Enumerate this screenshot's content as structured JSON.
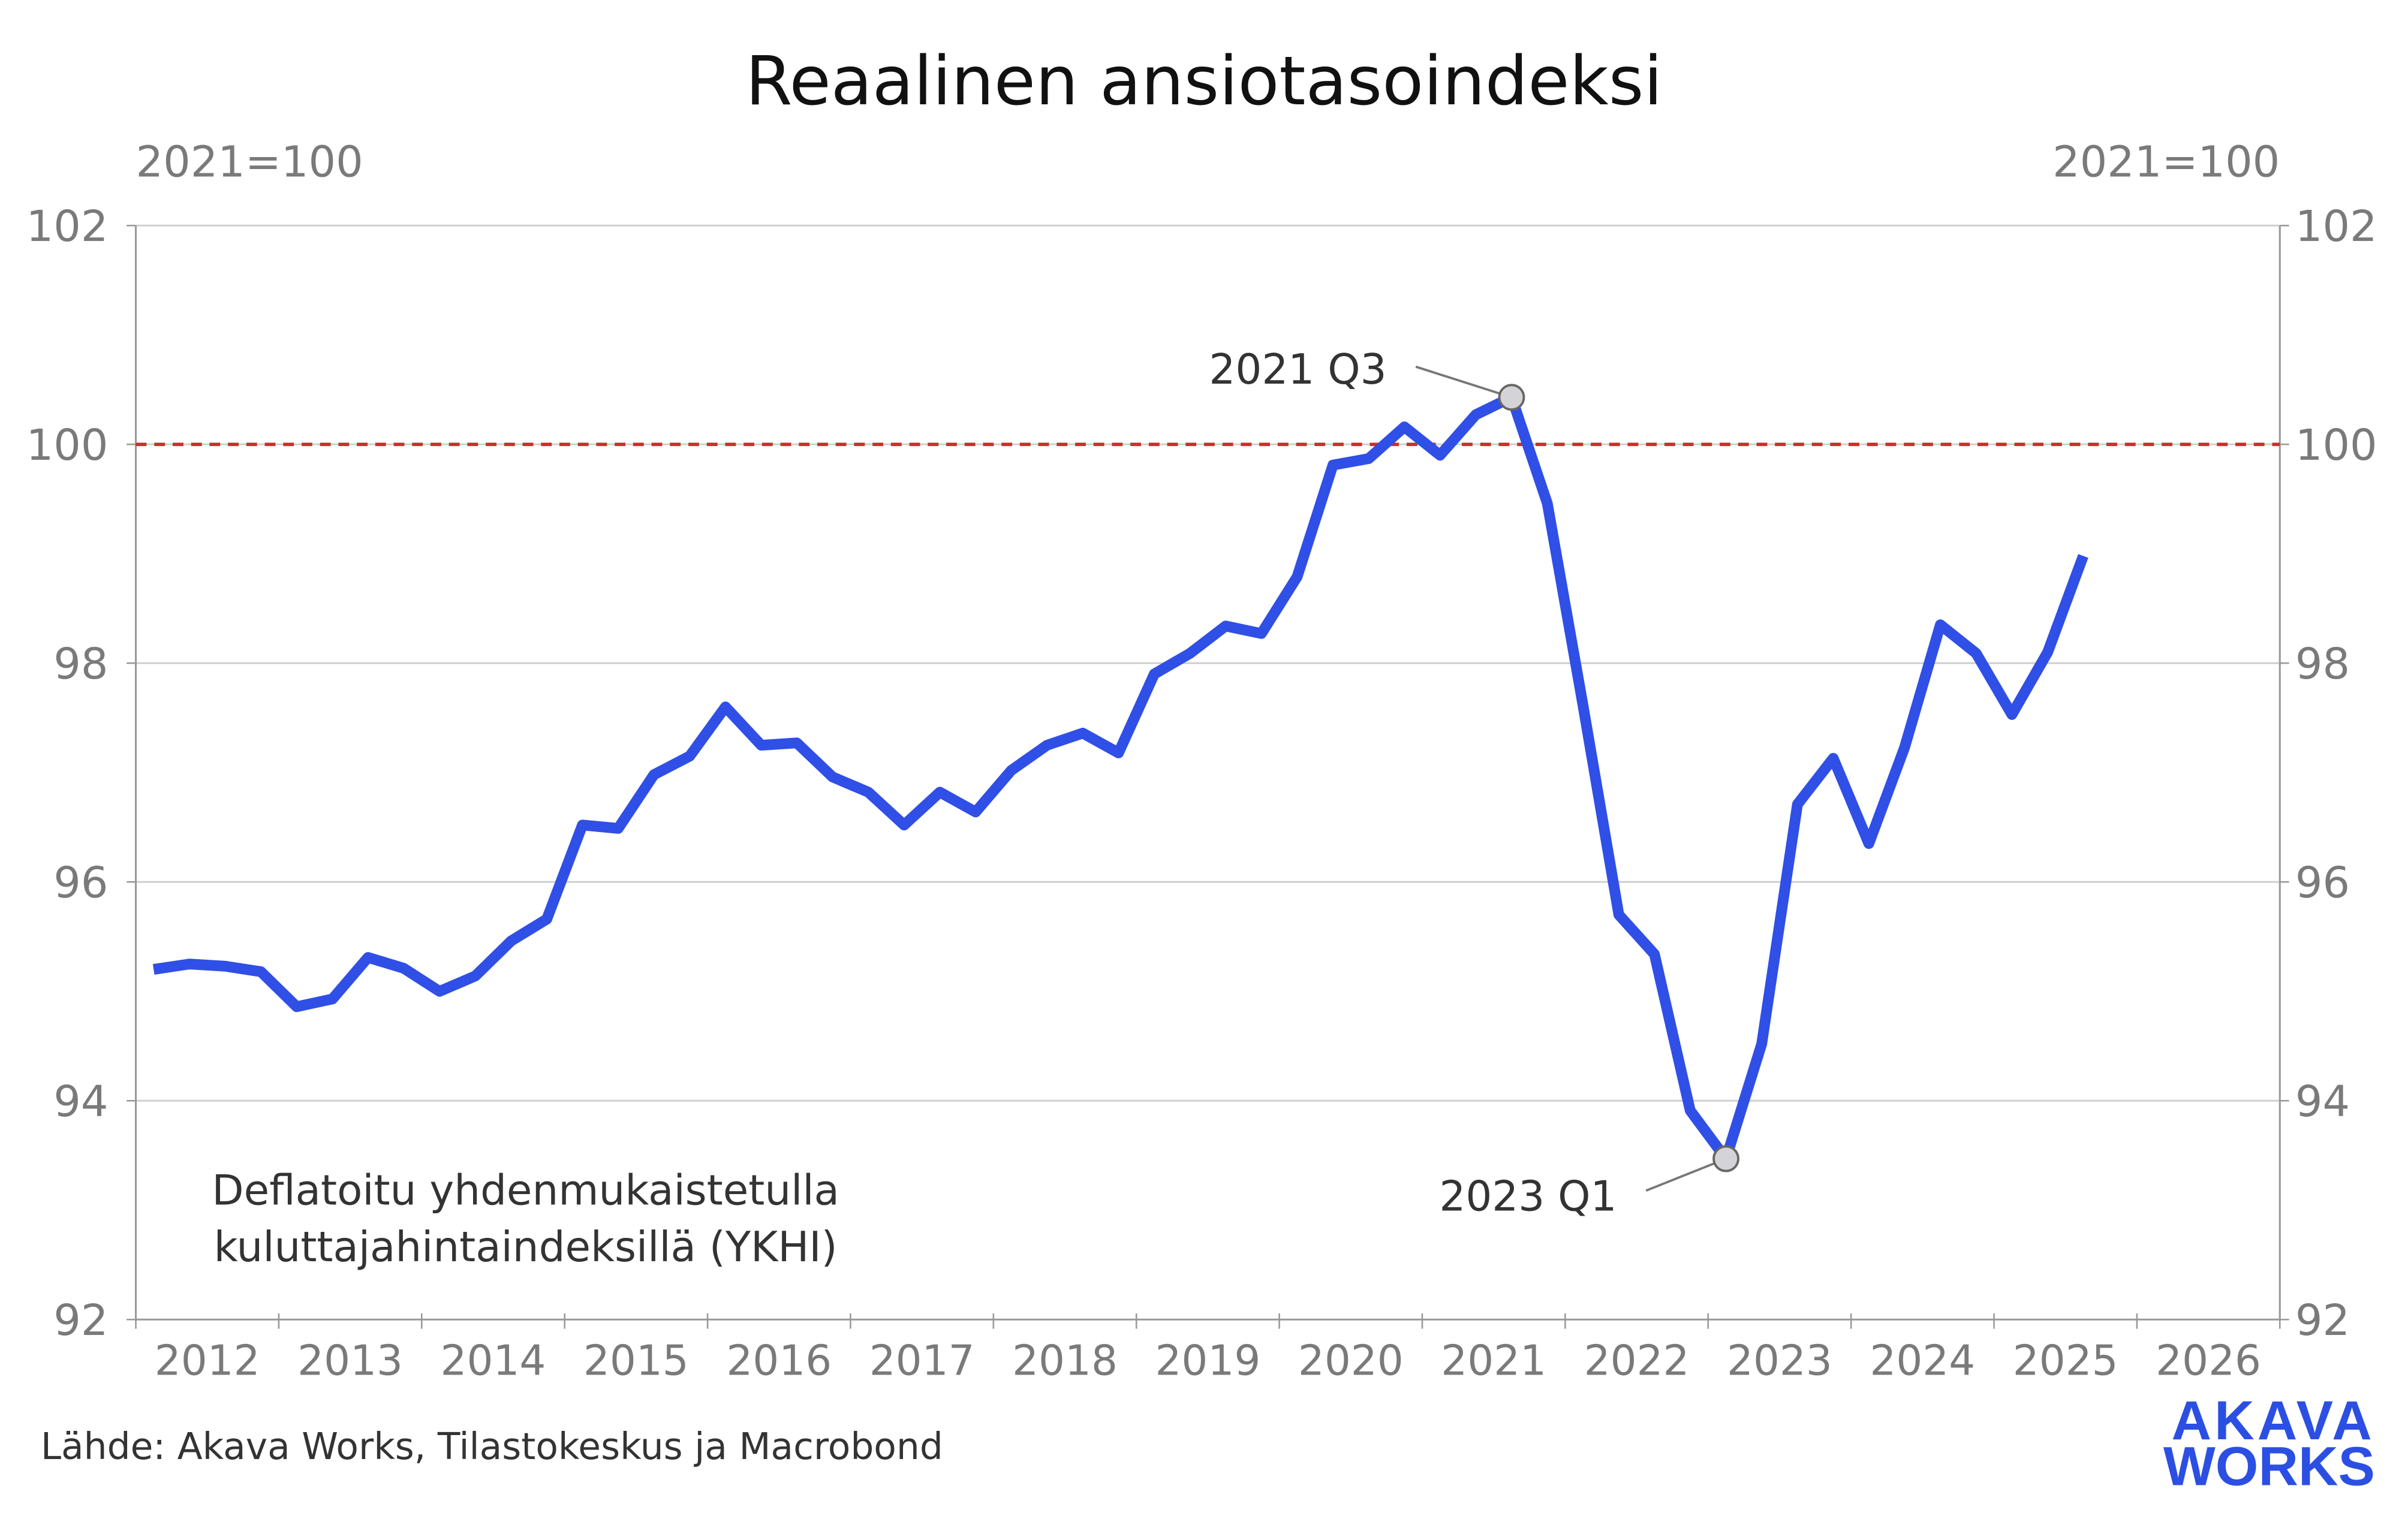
{
  "chart_data": {
    "type": "line",
    "title": "Reaalinen ansiotasoindeksi",
    "ylabel_left": "2021=100",
    "ylabel_right": "2021=100",
    "ylim": [
      92,
      102
    ],
    "yticks": [
      92,
      94,
      96,
      98,
      100,
      102
    ],
    "xlim": [
      2012,
      2027
    ],
    "xticks": [
      "2012",
      "2013",
      "2014",
      "2015",
      "2016",
      "2017",
      "2018",
      "2019",
      "2020",
      "2021",
      "2022",
      "2023",
      "2024",
      "2025",
      "2026"
    ],
    "grid": true,
    "reference_line": {
      "value": 100,
      "color": "#c8302a",
      "style": "dashed"
    },
    "series": [
      {
        "color": "#2f4fe6",
        "start": "2012 Q1",
        "frequency": "quarterly",
        "values": [
          95.2,
          95.25,
          95.23,
          95.18,
          94.86,
          94.93,
          95.31,
          95.21,
          95.0,
          95.14,
          95.46,
          95.66,
          96.52,
          96.49,
          96.98,
          97.15,
          97.6,
          97.25,
          97.27,
          96.96,
          96.82,
          96.52,
          96.82,
          96.64,
          97.02,
          97.25,
          97.36,
          97.18,
          97.9,
          98.09,
          98.34,
          98.27,
          98.79,
          99.81,
          99.87,
          100.16,
          99.9,
          100.27,
          100.43,
          99.46,
          97.61,
          95.7,
          95.34,
          93.91,
          93.47,
          94.52,
          96.71,
          97.13,
          96.35,
          97.23,
          98.35,
          98.09,
          97.53,
          98.1,
          98.98
        ]
      }
    ],
    "annotations": [
      {
        "label": "2021 Q3",
        "index": 38
      },
      {
        "label": "2023 Q1",
        "index": 44
      }
    ],
    "note": [
      "Deflatoitu yhdenmukaistetulla",
      "kuluttajahintaindeksillä (YKHI)"
    ],
    "source": "Lähde: Akava Works, Tilastokeskus ja Macrobond"
  },
  "logo": {
    "line1": "AKAVA",
    "line2": "WORKS",
    "color": "#2c4fe3"
  }
}
